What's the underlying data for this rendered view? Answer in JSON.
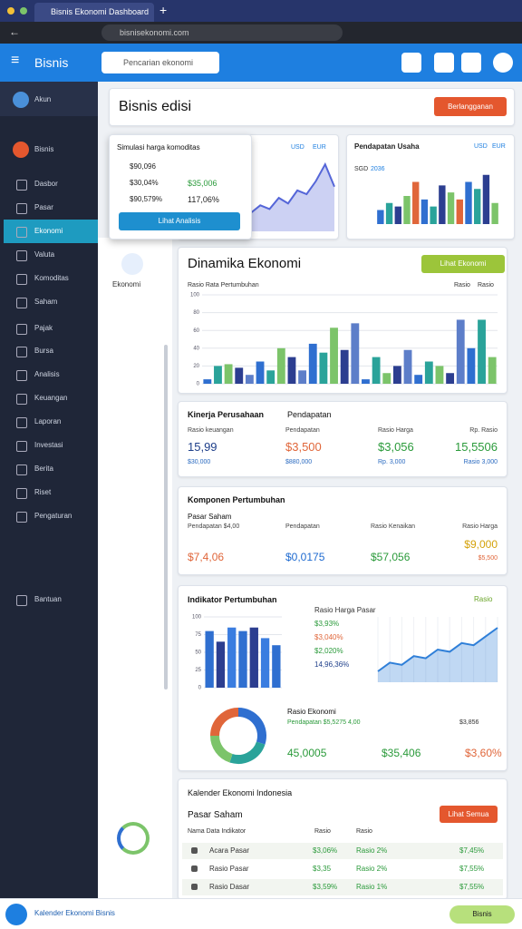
{
  "browser": {
    "tab": "Bisnis Ekonomi Dashboard",
    "url": "bisnisekonomi.com"
  },
  "app": {
    "brand": "Bisnis",
    "search": "Pencarian ekonomi"
  },
  "sidebar": {
    "items": [
      "Akun",
      "Bisnis",
      "Dasbor",
      "Pasar",
      "Ekonomi",
      "Valuta",
      "Komoditas",
      "Saham",
      "Pajak",
      "Bursa",
      "Analisis",
      "Keuangan",
      "Laporan",
      "Investasi",
      "Berita",
      "Riset",
      "Pengaturan",
      "Bantuan"
    ],
    "active": 4
  },
  "subnav": {
    "label": "Ekonomi"
  },
  "header": {
    "title": "Bisnis edisi",
    "button": "Berlangganan"
  },
  "popup": {
    "title": "Simulasi harga komoditas",
    "rows": [
      {
        "label": "$90,096"
      },
      {
        "label": "$30,04%",
        "value": "$35,006"
      },
      {
        "label": "$90,579%",
        "value": "117,06%"
      }
    ],
    "button": "Lihat Analisis"
  },
  "mini": {
    "tags": [
      "USD",
      "EUR"
    ],
    "labels": [
      "SGD",
      "2036"
    ]
  },
  "dinamika": {
    "button": "Lihat Ekonomi",
    "subtitle": "Rasio Rata Pertumbuhan",
    "tags": [
      "Rasio",
      "Rasio"
    ]
  },
  "kinerja": {
    "title": "Kinerja Perusahaan",
    "subtitle": "Pendapatan",
    "stats": [
      {
        "label": "Rasio keuangan",
        "value": "15,99",
        "sub": "$30,000"
      },
      {
        "label": "Pendapatan",
        "value": "$3,500",
        "sub": "$880,000"
      },
      {
        "label": "Rasio Harga",
        "value": "$3,056",
        "sub": "Rp. 3,000"
      },
      {
        "label": "Rp. Rasio",
        "value": "15,5506",
        "sub": "Rasio 3,000"
      }
    ]
  },
  "komponen": {
    "title": "Komponen Pertumbuhan",
    "subtitle": "Pasar Saham",
    "stats": [
      {
        "label": "Pendapatan $4,00",
        "value": "$7,4,06"
      },
      {
        "label": "Pendapatan",
        "value": "$0,0175"
      },
      {
        "label": "Rasio Kenaikan",
        "value": "$57,056"
      },
      {
        "label": "Rasio Harga",
        "value": "$9,000",
        "sub": "$5,500"
      }
    ]
  },
  "indikator": {
    "title": "Indikator Pertumbuhan",
    "tag": "Rasio",
    "list": [
      "Rasio Harga Pasar",
      "$3,93%",
      "$3,040%",
      "$2,020%",
      "14,96,36%"
    ],
    "bottom_title": "Rasio Ekonomi",
    "bottom_sub": "Pendapatan $5,5275 4,00",
    "bottom_tag": "$3,856",
    "values": [
      "45,0005",
      "$35,406",
      "$3,60%"
    ]
  },
  "kalender": {
    "title": "Kalender Ekonomi Indonesia",
    "subtitle": "Pasar Saham",
    "button": "Lihat Semua",
    "head": [
      "Nama Data Indikator",
      "Rasio",
      "Rasio"
    ],
    "rows": [
      [
        "Acara Pasar",
        "$3,06%",
        "Rasio 2%",
        "$7,45%"
      ],
      [
        "Rasio Pasar",
        "$3,35",
        "Rasio 2%",
        "$7,55%"
      ],
      [
        "Rasio Dasar",
        "$3,59%",
        "Rasio 1%",
        "$7,55%"
      ]
    ]
  },
  "footer": {
    "text": "Kalender Ekonomi Bisnis",
    "chip": "Bisnis"
  },
  "chart_data": [
    {
      "type": "area",
      "values": [
        10,
        14,
        12,
        18,
        15,
        22,
        20,
        27,
        36,
        24
      ],
      "ylim": [
        0,
        40
      ],
      "color": "#5566d8"
    },
    {
      "type": "bar",
      "title": "Pendapatan Usaha",
      "values": [
        20,
        30,
        25,
        40,
        60,
        35,
        25,
        55,
        45,
        35,
        60,
        50,
        70,
        30
      ],
      "colors": [
        "#2f6fd0",
        "#2aa39a",
        "#2c3e90",
        "#7cc46a",
        "#e0663a"
      ],
      "ylim": [
        0,
        80
      ]
    },
    {
      "type": "bar",
      "title": "Dinamika Ekonomi",
      "values": [
        5,
        20,
        22,
        18,
        10,
        25,
        15,
        40,
        30,
        15,
        45,
        35,
        63,
        38,
        68,
        5,
        30,
        12,
        20,
        38,
        10,
        25,
        20,
        12,
        72,
        40,
        72,
        30
      ],
      "colors": [
        "#2f6fd0",
        "#2aa39a",
        "#7cc46a",
        "#2c3e90",
        "#5d7ec9"
      ],
      "ylim": [
        0,
        100
      ],
      "yticks": [
        0,
        20,
        40,
        60,
        80,
        100
      ],
      "grid": true
    },
    {
      "type": "bar",
      "values": [
        80,
        65,
        85,
        80,
        85,
        70,
        60
      ],
      "colors": [
        "#2f6fd0",
        "#2c3e90",
        "#3a7de0"
      ],
      "ylim": [
        0,
        100
      ],
      "yticks": [
        0,
        25,
        50,
        75,
        100
      ],
      "grid": true
    },
    {
      "type": "area",
      "values": [
        10,
        18,
        16,
        24,
        22,
        30,
        28,
        36,
        34,
        42,
        50
      ],
      "ylim": [
        0,
        60
      ],
      "color": "#2f7fd8",
      "grid": true
    },
    {
      "type": "pie",
      "values": [
        30,
        25,
        20,
        25
      ],
      "colors": [
        "#2f6fd0",
        "#2aa39a",
        "#7cc46a",
        "#e0663a"
      ]
    }
  ]
}
